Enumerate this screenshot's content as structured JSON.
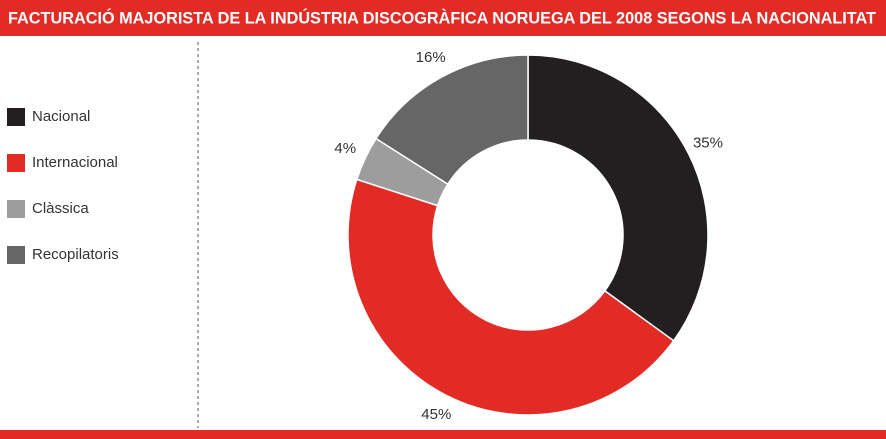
{
  "chart_data": {
    "type": "donut",
    "title": "FACTURACIÓ MAJORISTA DE LA INDÚSTRIA DISCOGRÀFICA NORUEGA DEL 2008 SEGONS LA NACIONALITAT",
    "categories": [
      "Nacional",
      "Internacional",
      "Clàssica",
      "Recopilatoris"
    ],
    "values": [
      35,
      45,
      4,
      16
    ],
    "value_labels": [
      "35%",
      "45%",
      "4%",
      "16%"
    ],
    "colors": [
      "#231f20",
      "#e32b26",
      "#9d9d9d",
      "#666666"
    ]
  }
}
